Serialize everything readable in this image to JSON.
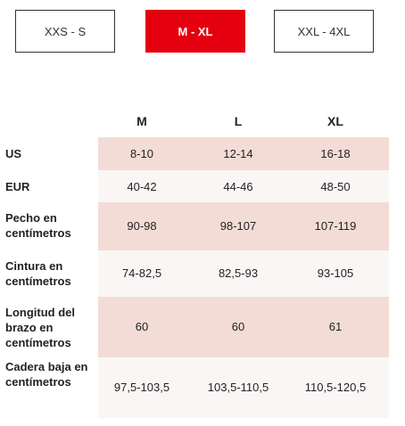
{
  "tabs": [
    {
      "label": "XXS - S",
      "active": false
    },
    {
      "label": "M - XL",
      "active": true
    },
    {
      "label": "XXL - 4XL",
      "active": false
    }
  ],
  "colors": {
    "accent": "#e50010",
    "row_shaded": "#f3dcd6",
    "row_light": "#faf6f5"
  },
  "table": {
    "columns": [
      "M",
      "L",
      "XL"
    ],
    "rows": [
      {
        "label": "US",
        "values": [
          "8-10",
          "12-14",
          "16-18"
        ]
      },
      {
        "label": "EUR",
        "values": [
          "40-42",
          "44-46",
          "48-50"
        ]
      },
      {
        "label": "Pecho en centímetros",
        "values": [
          "90-98",
          "98-107",
          "107-119"
        ]
      },
      {
        "label": "Cintura en centímetros",
        "values": [
          "74-82,5",
          "82,5-93",
          "93-105"
        ]
      },
      {
        "label": "Longitud del brazo en centímetros",
        "values": [
          "60",
          "60",
          "61"
        ]
      },
      {
        "label": "Cadera baja en centímetros",
        "values": [
          "97,5-103,5",
          "103,5-110,5",
          "110,5-120,5"
        ]
      }
    ]
  }
}
